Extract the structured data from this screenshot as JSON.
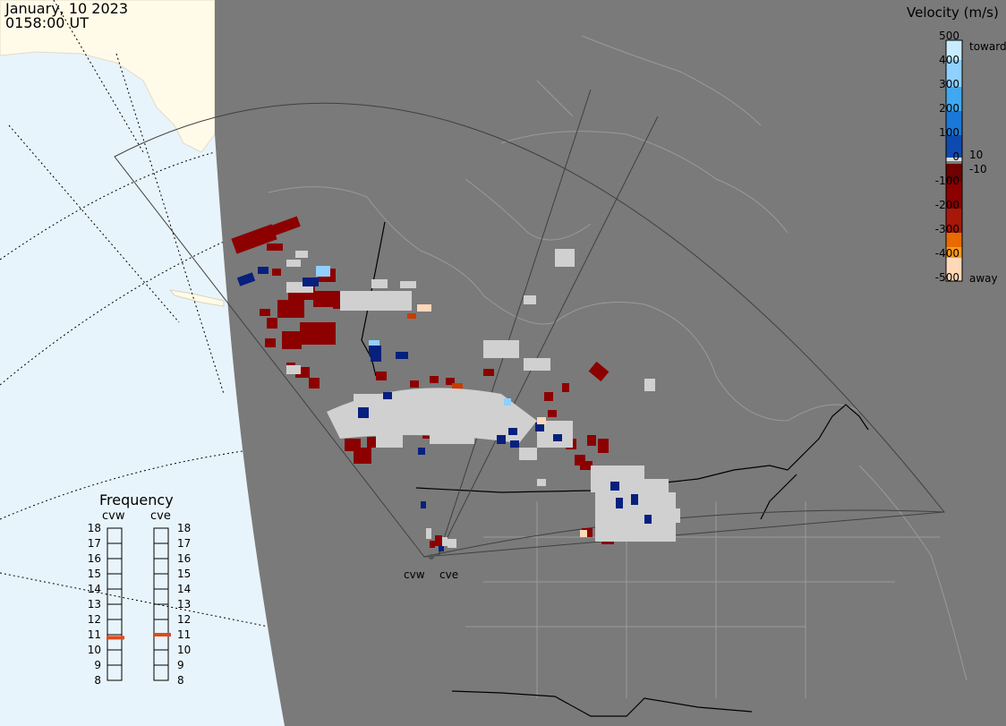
{
  "header": {
    "date": "January, 10 2023",
    "time": "0158:00 UT"
  },
  "velocity_scale": {
    "title": "Velocity (m/s)",
    "ticks": [
      "500",
      "400",
      "300",
      "200",
      "100",
      "0",
      "-100",
      "-200",
      "-300",
      "-400",
      "-500"
    ],
    "label_toward": "toward",
    "label_away": "away",
    "label_plus10": "10",
    "label_minus10": "-10",
    "colors": {
      "toward": [
        "#c8ecff",
        "#8fd0ff",
        "#40a8f0",
        "#1a78d8",
        "#0d4ab0",
        "#06207e"
      ],
      "away": [
        "#6e0000",
        "#8c0000",
        "#a81808",
        "#c83c00",
        "#e86a00",
        "#ff9a18",
        "#ffd8b8"
      ],
      "ground_scatter": "#d0d0d0",
      "background": "#7a7a7a",
      "ocean": "#e8f4fb",
      "land_alaska": "#fffbe8"
    }
  },
  "frequency_panel": {
    "title": "Frequency",
    "radars": [
      {
        "name": "cvw",
        "value_mhz": 10.8
      },
      {
        "name": "cve",
        "value_mhz": 11.0
      }
    ],
    "ticks": [
      "18",
      "17",
      "16",
      "15",
      "14",
      "13",
      "12",
      "11",
      "10",
      "9",
      "8"
    ]
  },
  "radar_sites": {
    "west": "cvw",
    "east": "cve"
  }
}
